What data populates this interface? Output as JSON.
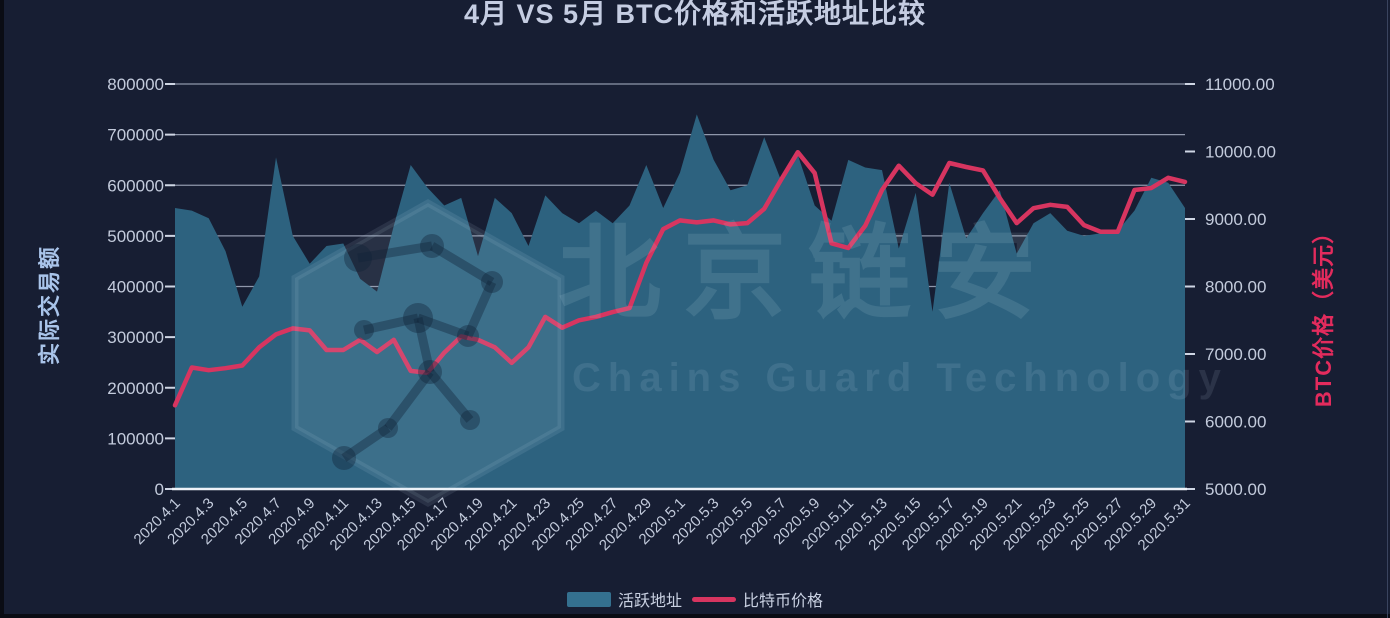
{
  "title": "4月 VS 5月 BTC价格和活跃地址比较",
  "watermark": {
    "cn": "北京链安",
    "en": "Chains Guard Technology"
  },
  "legend": {
    "area_label": "活跃地址",
    "line_label": "比特币价格"
  },
  "colors": {
    "background": "#171e33",
    "area_fill": "#2d627f",
    "price_line": "#d73560",
    "grid_line": "#aeb6ca",
    "zero_axis": "#eef2f8",
    "tick_text": "#c3cbdc",
    "left_axis_title": "#a9c4ea",
    "right_axis_title": "#e32b5d"
  },
  "chart_data": {
    "type": "area+line combo, dual y-axis",
    "title": "4月 VS 5月 BTC价格和活跃地址比较",
    "grid": true,
    "legend_position": "bottom",
    "x_tick_every": 2,
    "categories": [
      "2020.4.1",
      "2020.4.2",
      "2020.4.3",
      "2020.4.4",
      "2020.4.5",
      "2020.4.6",
      "2020.4.7",
      "2020.4.8",
      "2020.4.9",
      "2020.4.10",
      "2020.4.11",
      "2020.4.12",
      "2020.4.13",
      "2020.4.14",
      "2020.4.15",
      "2020.4.16",
      "2020.4.17",
      "2020.4.18",
      "2020.4.19",
      "2020.4.20",
      "2020.4.21",
      "2020.4.22",
      "2020.4.23",
      "2020.4.24",
      "2020.4.25",
      "2020.4.26",
      "2020.4.27",
      "2020.4.28",
      "2020.4.29",
      "2020.4.30",
      "2020.5.1",
      "2020.5.2",
      "2020.5.3",
      "2020.5.4",
      "2020.5.5",
      "2020.5.6",
      "2020.5.7",
      "2020.5.8",
      "2020.5.9",
      "2020.5.10",
      "2020.5.11",
      "2020.5.12",
      "2020.5.13",
      "2020.5.14",
      "2020.5.15",
      "2020.5.16",
      "2020.5.17",
      "2020.5.18",
      "2020.5.19",
      "2020.5.20",
      "2020.5.21",
      "2020.5.22",
      "2020.5.23",
      "2020.5.24",
      "2020.5.25",
      "2020.5.26",
      "2020.5.27",
      "2020.5.28",
      "2020.5.29",
      "2020.5.30",
      "2020.5.31"
    ],
    "series": [
      {
        "name": "活跃地址",
        "type": "area",
        "axis": "left",
        "color": "#2d627f",
        "values": [
          555000,
          550000,
          535000,
          470000,
          360000,
          420000,
          655000,
          500000,
          445000,
          480000,
          485000,
          415000,
          390000,
          520000,
          640000,
          595000,
          560000,
          575000,
          460000,
          575000,
          545000,
          480000,
          580000,
          545000,
          525000,
          550000,
          525000,
          560000,
          640000,
          555000,
          625000,
          740000,
          650000,
          590000,
          600000,
          695000,
          610000,
          660000,
          560000,
          530000,
          650000,
          635000,
          630000,
          475000,
          585000,
          350000,
          605000,
          495000,
          545000,
          590000,
          465000,
          525000,
          545000,
          510000,
          500000,
          505000,
          510000,
          550000,
          615000,
          605000,
          555000
        ]
      },
      {
        "name": "比特币价格",
        "type": "line",
        "axis": "right",
        "color": "#d73560",
        "values": [
          6240,
          6800,
          6760,
          6790,
          6830,
          7100,
          7290,
          7380,
          7350,
          7060,
          7060,
          7210,
          7030,
          7210,
          6750,
          6720,
          7020,
          7260,
          7210,
          7100,
          6870,
          7100,
          7550,
          7390,
          7500,
          7550,
          7620,
          7680,
          8350,
          8850,
          8980,
          8950,
          8980,
          8920,
          8940,
          9150,
          9580,
          9990,
          9680,
          8640,
          8570,
          8900,
          9430,
          9790,
          9530,
          9360,
          9830,
          9770,
          9720,
          9310,
          8940,
          9160,
          9210,
          9180,
          8910,
          8810,
          8810,
          9430,
          9460,
          9610,
          9550
        ]
      }
    ],
    "left_axis": {
      "title": "实际交易额",
      "min": 0,
      "max": 800000,
      "step": 100000,
      "tick_labels": [
        "0",
        "100000",
        "200000",
        "300000",
        "400000",
        "500000",
        "600000",
        "700000",
        "800000"
      ]
    },
    "right_axis": {
      "title": "BTC价格（美元）",
      "min": 5000,
      "max": 11000,
      "step": 1000,
      "tick_labels": [
        "5000.00",
        "6000.00",
        "7000.00",
        "8000.00",
        "9000.00",
        "10000.00",
        "11000.00"
      ]
    }
  }
}
